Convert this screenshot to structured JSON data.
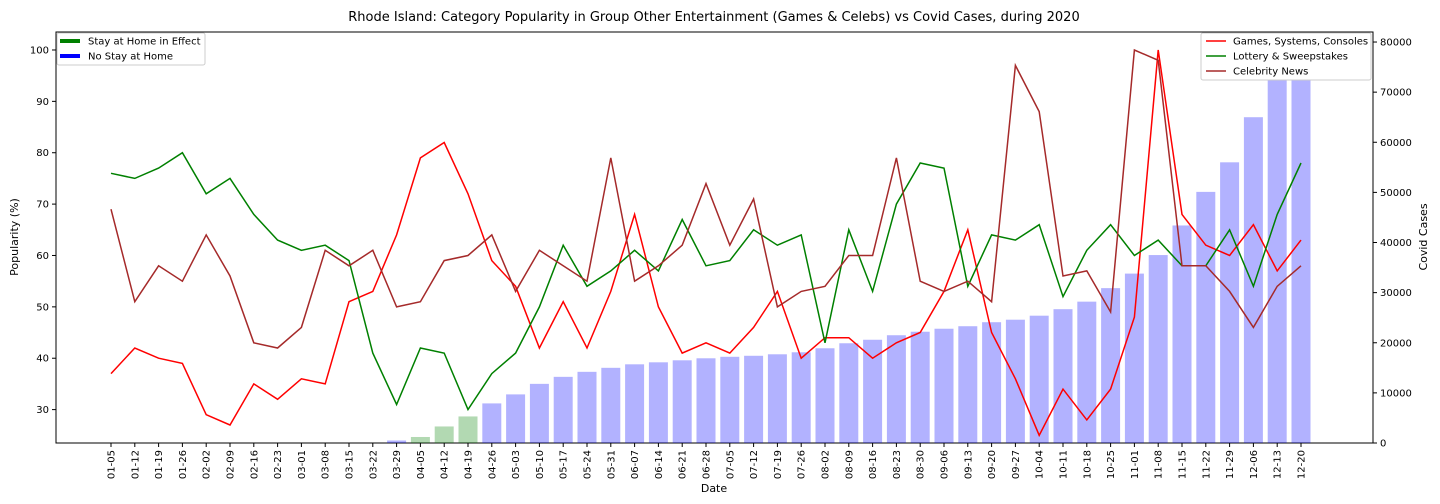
{
  "chart_data": {
    "type": "bar+line",
    "title": "Rhode Island: Category Popularity in Group Other Entertainment (Games & Celebs) vs Covid Cases, during 2020",
    "xlabel": "Date",
    "ylabel": "Popularity (%)",
    "y2label": "Covid Cases",
    "ylim": [
      23.5,
      103.5
    ],
    "y2lim": [
      0,
      82000
    ],
    "yticks": [
      30,
      40,
      50,
      60,
      70,
      80,
      90,
      100
    ],
    "y2ticks": [
      0,
      10000,
      20000,
      30000,
      40000,
      50000,
      60000,
      70000,
      80000
    ],
    "categories": [
      "01-05",
      "01-12",
      "01-19",
      "01-26",
      "02-02",
      "02-09",
      "02-16",
      "02-23",
      "03-01",
      "03-08",
      "03-15",
      "03-22",
      "03-29",
      "04-05",
      "04-12",
      "04-19",
      "04-26",
      "05-03",
      "05-10",
      "05-17",
      "05-24",
      "05-31",
      "06-07",
      "06-14",
      "06-21",
      "06-28",
      "07-05",
      "07-12",
      "07-19",
      "07-26",
      "08-02",
      "08-09",
      "08-16",
      "08-23",
      "08-30",
      "09-06",
      "09-13",
      "09-20",
      "09-27",
      "10-04",
      "10-11",
      "10-18",
      "10-25",
      "11-01",
      "11-08",
      "11-15",
      "11-22",
      "11-29",
      "12-06",
      "12-13",
      "12-20"
    ],
    "bars": {
      "name": "Covid Cases",
      "values": [
        0,
        0,
        0,
        0,
        0,
        0,
        0,
        0,
        0,
        0,
        0,
        0,
        500,
        1200,
        3300,
        5300,
        7900,
        9700,
        11800,
        13200,
        14200,
        15000,
        15700,
        16100,
        16500,
        16900,
        17200,
        17400,
        17700,
        18100,
        18900,
        19900,
        20600,
        21500,
        22200,
        22800,
        23300,
        24100,
        24600,
        25400,
        26700,
        28200,
        30900,
        33800,
        37500,
        43400,
        50100,
        56000,
        65000,
        73800,
        79800
      ],
      "stay_home_colors": [
        "#0000ff",
        "#0000ff",
        "#0000ff",
        "#0000ff",
        "#0000ff",
        "#0000ff",
        "#0000ff",
        "#0000ff",
        "#0000ff",
        "#0000ff",
        "#0000ff",
        "#0000ff",
        "#0000ff",
        "#008000",
        "#008000",
        "#008000",
        "#0000ff",
        "#0000ff",
        "#0000ff",
        "#0000ff",
        "#0000ff",
        "#0000ff",
        "#0000ff",
        "#0000ff",
        "#0000ff",
        "#0000ff",
        "#0000ff",
        "#0000ff",
        "#0000ff",
        "#0000ff",
        "#0000ff",
        "#0000ff",
        "#0000ff",
        "#0000ff",
        "#0000ff",
        "#0000ff",
        "#0000ff",
        "#0000ff",
        "#0000ff",
        "#0000ff",
        "#0000ff",
        "#0000ff",
        "#0000ff",
        "#0000ff",
        "#0000ff",
        "#0000ff",
        "#0000ff",
        "#0000ff",
        "#0000ff",
        "#0000ff",
        "#0000ff"
      ]
    },
    "series": [
      {
        "name": "Games, Systems, Consoles",
        "color": "#ff0000",
        "values": [
          37,
          42,
          40,
          39,
          29,
          27,
          35,
          32,
          36,
          35,
          51,
          53,
          64,
          79,
          82,
          72,
          59,
          54,
          42,
          51,
          42,
          53,
          68,
          50,
          41,
          43,
          41,
          46,
          53,
          40,
          44,
          44,
          40,
          43,
          45,
          53,
          65,
          45,
          36,
          25,
          34,
          28,
          34,
          48,
          100,
          68,
          62,
          60,
          66,
          57,
          63
        ]
      },
      {
        "name": "Lottery & Sweepstakes",
        "color": "#008000",
        "values": [
          76,
          75,
          77,
          80,
          72,
          75,
          68,
          63,
          61,
          62,
          59,
          41,
          31,
          42,
          41,
          30,
          37,
          41,
          50,
          62,
          54,
          57,
          61,
          57,
          67,
          58,
          59,
          65,
          62,
          64,
          43,
          65,
          53,
          70,
          78,
          77,
          54,
          64,
          63,
          66,
          52,
          61,
          66,
          60,
          63,
          58,
          58,
          65,
          54,
          68,
          78
        ]
      },
      {
        "name": "Celebrity News",
        "color": "#a52a2a",
        "values": [
          69,
          51,
          58,
          55,
          64,
          56,
          43,
          42,
          46,
          61,
          58,
          61,
          50,
          51,
          59,
          60,
          64,
          53,
          61,
          58,
          55,
          79,
          55,
          58,
          62,
          74,
          62,
          71,
          50,
          53,
          54,
          60,
          60,
          79,
          55,
          53,
          55,
          51,
          97,
          88,
          56,
          57,
          49,
          100,
          98,
          58,
          58,
          53,
          46,
          54,
          58
        ]
      }
    ],
    "legend_left": [
      {
        "label": "Stay at Home in Effect",
        "color": "#008000"
      },
      {
        "label": "No Stay at Home",
        "color": "#0000ff"
      }
    ],
    "legend_left_position": "top-left",
    "legend_right_position": "top-right",
    "grid": false
  }
}
